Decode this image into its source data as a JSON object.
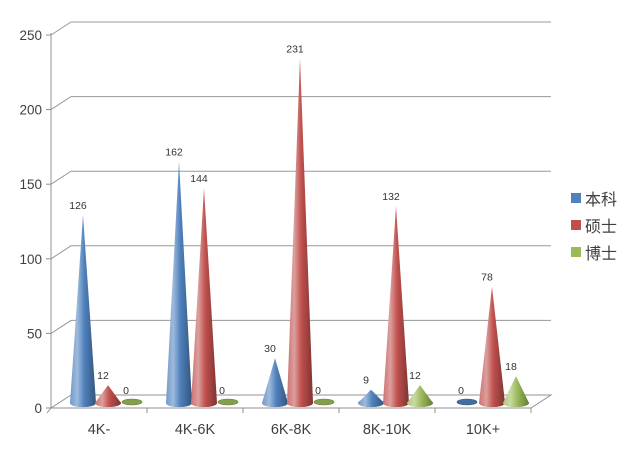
{
  "chart_data": {
    "type": "bar",
    "variant": "cone-3d",
    "title": "",
    "xlabel": "",
    "ylabel": "",
    "categories": [
      "4K-",
      "4K-6K",
      "6K-8K",
      "8K-10K",
      "10K+"
    ],
    "series": [
      {
        "name": "本科",
        "color": "#4F81BD",
        "values": [
          126,
          162,
          30,
          9,
          0
        ]
      },
      {
        "name": "硕士",
        "color": "#C0504D",
        "values": [
          12,
          144,
          231,
          132,
          78
        ]
      },
      {
        "name": "博士",
        "color": "#9BBB59",
        "values": [
          0,
          0,
          0,
          12,
          18
        ]
      }
    ],
    "yticks": [
      0,
      50,
      100,
      150,
      200,
      250
    ],
    "ylim": [
      0,
      250
    ],
    "grid": true,
    "data_labels": true,
    "legend_position": "right",
    "axis_color": "#909090",
    "gridline_color": "#989898",
    "tick_label_color": "#3F3F3F",
    "data_label_color": "#333333"
  }
}
